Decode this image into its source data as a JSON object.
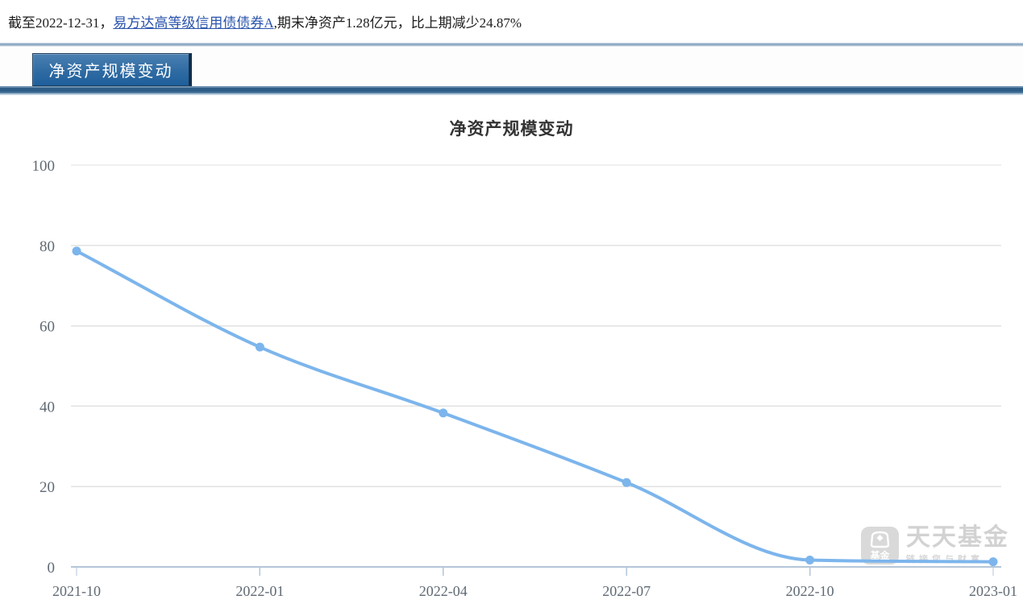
{
  "note": {
    "prefix": "截至2022-12-31，",
    "fund_link": "易方达高等级信用债债券A",
    "suffix": ",期末净资产1.28亿元，比上期减少24.87%"
  },
  "tab": {
    "label": "净资产规模变动"
  },
  "watermark": {
    "logo_text": "基金",
    "brand": "天天基金",
    "slogan": "链接您与财富"
  },
  "chart_data": {
    "type": "line",
    "title": "净资产规模变动",
    "categories": [
      "2021-10",
      "2022-01",
      "2022-04",
      "2022-07",
      "2022-10",
      "2023-01"
    ],
    "values": [
      78.6,
      54.7,
      38.3,
      21.0,
      1.7,
      1.28
    ],
    "ylim": [
      0,
      100
    ],
    "yticks": [
      0,
      20,
      40,
      60,
      80,
      100
    ],
    "grid": true,
    "legend": "none",
    "line_color": "#7cb5ec",
    "marker_color": "#7cb5ec",
    "axis_color": "#b3c6d9",
    "grid_color": "#e2e2e2",
    "label_color": "#606a74"
  }
}
